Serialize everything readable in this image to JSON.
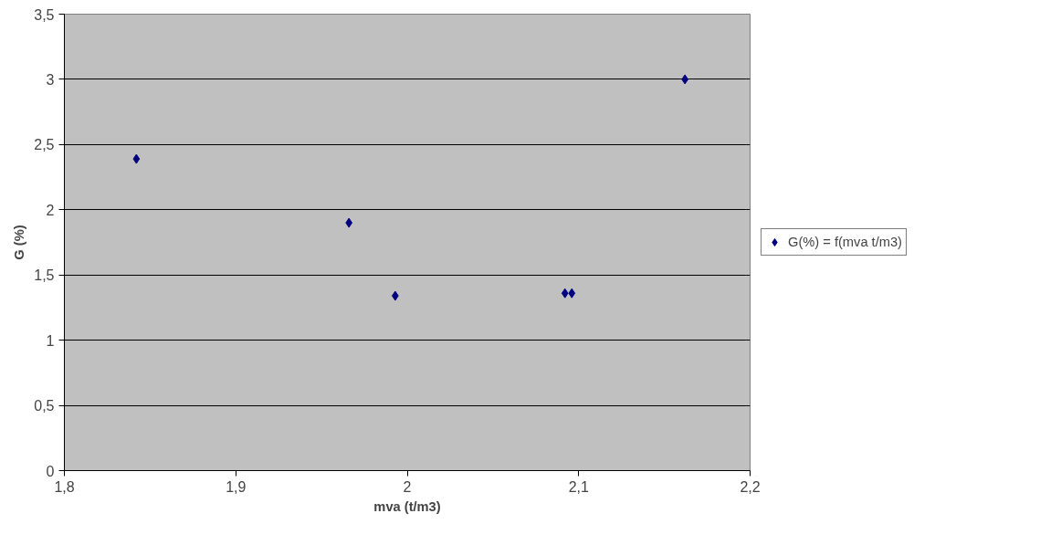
{
  "chart_data": {
    "type": "scatter",
    "xlabel": "mva (t/m3)",
    "ylabel": "G (%)",
    "x": [
      1.842,
      1.966,
      1.993,
      2.092,
      2.096,
      2.162
    ],
    "series": [
      {
        "name": "G(%) = f(mva t/m3)",
        "color": "#000080",
        "values": [
          2.39,
          1.9,
          1.34,
          1.36,
          1.36,
          3.0
        ]
      }
    ],
    "xlim": [
      1.8,
      2.2
    ],
    "ylim": [
      0,
      3.5
    ],
    "xticks": [
      {
        "value": 1.8,
        "label": "1,8"
      },
      {
        "value": 1.9,
        "label": "1,9"
      },
      2,
      {
        "value": 2.1,
        "label": "2,1"
      },
      {
        "value": 2.2,
        "label": "2,2"
      }
    ],
    "yticks": [
      0,
      {
        "value": 0.5,
        "label": "0,5"
      },
      1,
      {
        "value": 1.5,
        "label": "1,5"
      },
      2,
      {
        "value": 2.5,
        "label": "2,5"
      },
      3,
      {
        "value": 3.5,
        "label": "3,5"
      }
    ],
    "grid": "y",
    "legend": "right",
    "marker": "diamond"
  }
}
